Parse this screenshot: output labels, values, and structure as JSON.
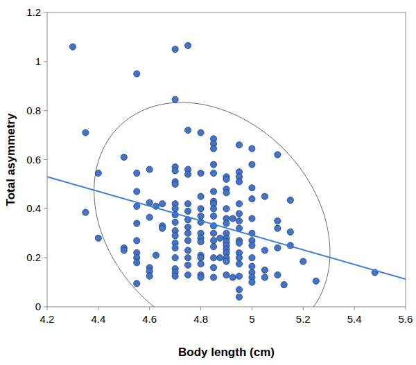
{
  "chart_data": {
    "type": "scatter",
    "x_label": "Body length (cm)",
    "y_label": "Total asymmetry",
    "color": "#4472c4",
    "xlim": [
      4.2,
      5.6
    ],
    "ylim": [
      0,
      1.2
    ],
    "xticks": [
      4.2,
      4.4,
      4.6,
      4.8,
      5,
      5.2,
      5.4,
      5.6
    ],
    "yticks": [
      0,
      0.2,
      0.4,
      0.6,
      0.8,
      1,
      1.2
    ],
    "x": [
      4.3,
      4.7,
      4.75,
      4.55,
      4.7,
      4.35,
      4.35,
      4.4,
      4.4,
      4.5,
      4.5,
      4.5,
      4.55,
      4.55,
      4.55,
      4.55,
      4.55,
      4.55,
      4.55,
      4.55,
      4.55,
      4.6,
      4.6,
      4.6,
      4.6,
      4.6,
      4.6,
      4.625,
      4.625,
      4.65,
      4.65,
      4.65,
      4.7,
      4.7,
      4.7,
      4.7,
      4.7,
      4.7,
      4.7,
      4.7,
      4.7,
      4.7,
      4.7,
      4.7,
      4.7,
      4.7,
      4.7,
      4.7,
      4.75,
      4.75,
      4.75,
      4.75,
      4.75,
      4.75,
      4.75,
      4.75,
      4.75,
      4.75,
      4.75,
      4.75,
      4.75,
      4.8,
      4.8,
      4.8,
      4.8,
      4.8,
      4.8,
      4.8,
      4.8,
      4.8,
      4.8,
      4.8,
      4.8,
      4.8,
      4.8,
      4.85,
      4.85,
      4.85,
      4.85,
      4.85,
      4.85,
      4.85,
      4.85,
      4.85,
      4.85,
      4.85,
      4.85,
      4.85,
      4.85,
      4.85,
      4.85,
      4.85,
      4.875,
      4.875,
      4.9,
      4.9,
      4.9,
      4.9,
      4.9,
      4.9,
      4.9,
      4.9,
      4.9,
      4.9,
      4.9,
      4.9,
      4.9,
      4.9,
      4.9,
      4.9,
      4.925,
      4.925,
      4.95,
      4.95,
      4.95,
      4.95,
      4.95,
      4.95,
      4.95,
      4.95,
      4.95,
      4.95,
      4.95,
      4.95,
      4.95,
      4.95,
      4.95,
      4.95,
      5,
      5,
      5,
      5,
      5,
      5,
      5,
      5,
      5,
      5,
      5,
      5,
      5,
      5.05,
      5.05,
      5.05,
      5.05,
      5.1,
      5.1,
      5.1,
      5.1,
      5.1,
      5.125,
      5.15,
      5.15,
      5.15,
      5.2,
      5.25,
      5.48
    ],
    "values": [
      1.06,
      1.05,
      1.065,
      0.95,
      0.845,
      0.71,
      0.385,
      0.545,
      0.28,
      0.61,
      0.24,
      0.23,
      0.545,
      0.47,
      0.41,
      0.34,
      0.27,
      0.22,
      0.2,
      0.18,
      0.095,
      0.56,
      0.425,
      0.365,
      0.16,
      0.145,
      0.125,
      0.41,
      0.21,
      0.42,
      0.33,
      0.32,
      0.57,
      0.555,
      0.51,
      0.5,
      0.42,
      0.4,
      0.375,
      0.345,
      0.31,
      0.29,
      0.26,
      0.24,
      0.2,
      0.155,
      0.14,
      0.125,
      0.72,
      0.56,
      0.54,
      0.42,
      0.39,
      0.355,
      0.325,
      0.3,
      0.27,
      0.23,
      0.2,
      0.17,
      0.13,
      0.71,
      0.545,
      0.45,
      0.4,
      0.37,
      0.345,
      0.3,
      0.28,
      0.265,
      0.21,
      0.2,
      0.175,
      0.13,
      0.12,
      0.685,
      0.665,
      0.645,
      0.58,
      0.545,
      0.47,
      0.43,
      0.42,
      0.4,
      0.37,
      0.33,
      0.3,
      0.27,
      0.245,
      0.2,
      0.16,
      0.12,
      0.28,
      0.2,
      0.53,
      0.52,
      0.48,
      0.465,
      0.4,
      0.36,
      0.34,
      0.3,
      0.28,
      0.265,
      0.25,
      0.235,
      0.22,
      0.2,
      0.185,
      0.13,
      0.36,
      0.12,
      0.66,
      0.55,
      0.53,
      0.51,
      0.42,
      0.38,
      0.35,
      0.32,
      0.27,
      0.26,
      0.22,
      0.2,
      0.175,
      0.125,
      0.07,
      0.04,
      0.645,
      0.58,
      0.485,
      0.44,
      0.36,
      0.3,
      0.27,
      0.25,
      0.2,
      0.165,
      0.14,
      0.12,
      0.1,
      0.45,
      0.23,
      0.15,
      0.12,
      0.62,
      0.35,
      0.32,
      0.24,
      0.13,
      0.09,
      0.435,
      0.305,
      0.25,
      0.185,
      0.105,
      0.14
    ],
    "trend_line": {
      "x": [
        4.2,
        5.6
      ],
      "values": [
        0.53,
        0.113
      ],
      "color": "#3a7be0"
    },
    "ellipse": {
      "center": [
        4.844,
        0.347
      ],
      "top": [
        4.725,
        0.833
      ],
      "half_width": 0.445,
      "color": "#555555"
    }
  }
}
